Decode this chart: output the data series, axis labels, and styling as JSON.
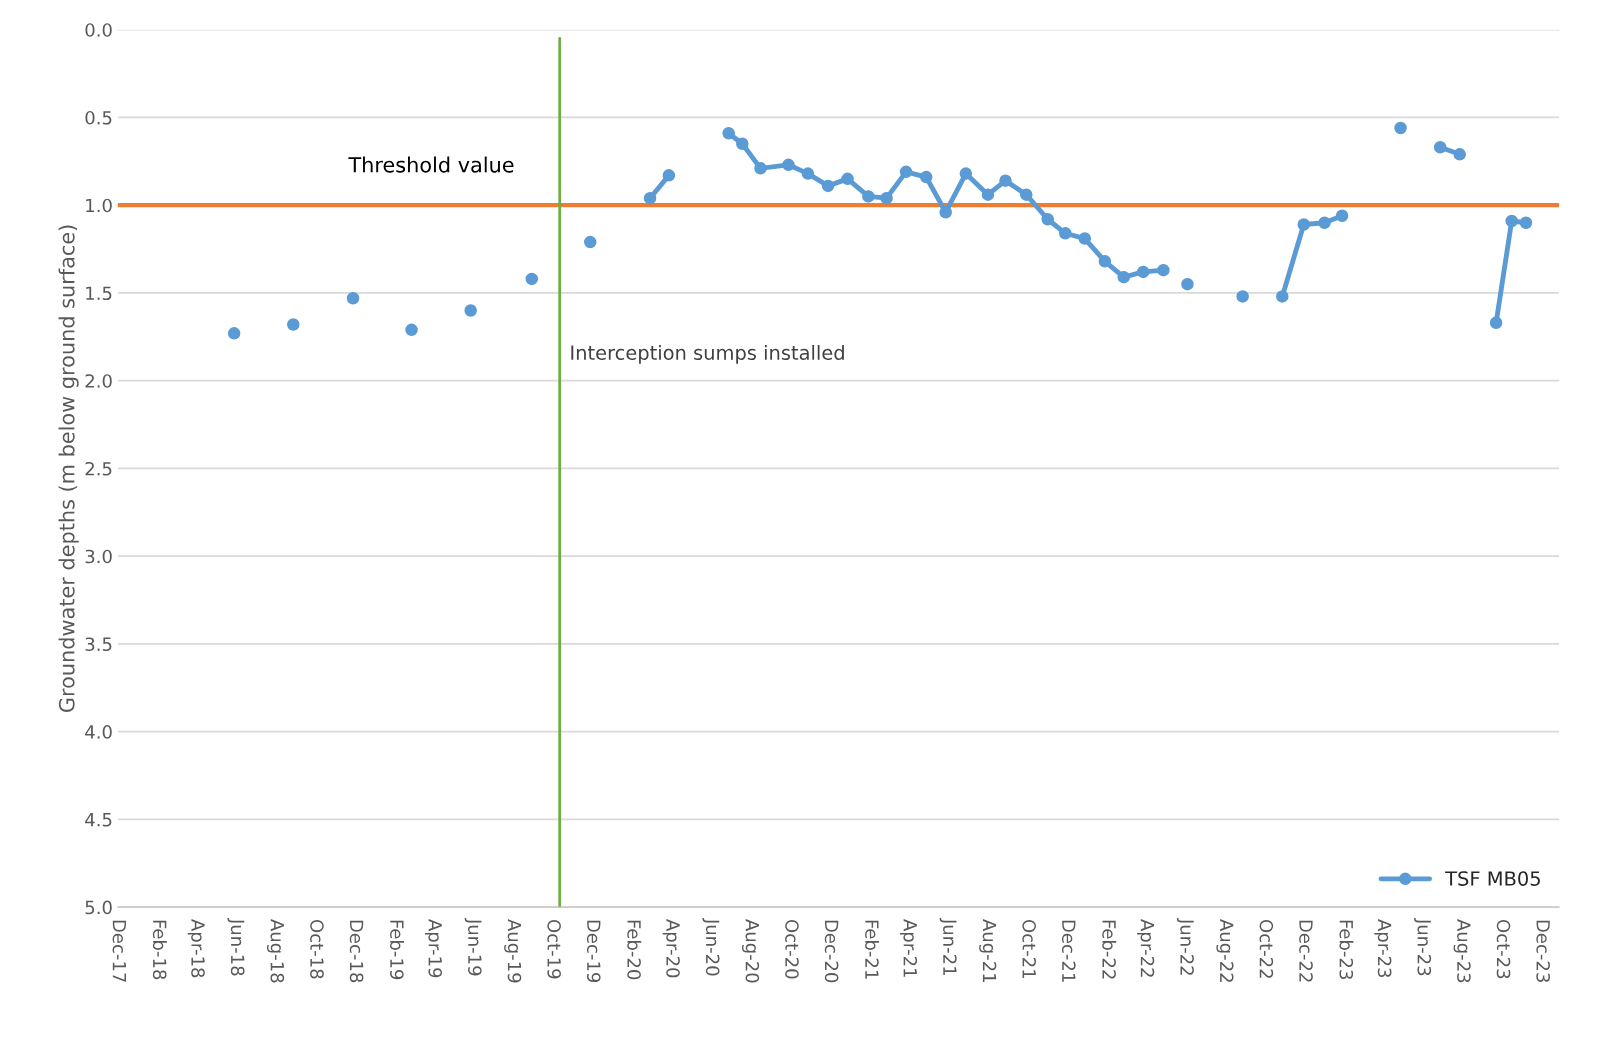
{
  "chart_data": {
    "type": "line",
    "ylabel": "Groundwater depths (m below ground surface)",
    "x": [
      "2018-05-29",
      "2018-07-15",
      "2018-08-28",
      "2018-10-15",
      "2018-11-28",
      "2019-01-15",
      "2019-02-26",
      "2019-04-15",
      "2019-05-28",
      "2019-07-15",
      "2019-08-30",
      "2019-10-15",
      "2019-11-28",
      "2020-01-15",
      "2020-02-28",
      "2020-03-28",
      "2020-05-15",
      "2020-06-28",
      "2020-07-19",
      "2020-08-16",
      "2020-09-28",
      "2020-10-28",
      "2020-11-28",
      "2020-12-28",
      "2021-01-29",
      "2021-02-26",
      "2021-03-28",
      "2021-04-28",
      "2021-05-28",
      "2021-06-28",
      "2021-08-01",
      "2021-08-28",
      "2021-09-29",
      "2021-11-01",
      "2021-11-28",
      "2021-12-28",
      "2022-01-28",
      "2022-02-26",
      "2022-03-28",
      "2022-04-28",
      "2022-05-15",
      "2022-06-04",
      "2022-07-15",
      "2022-08-28",
      "2022-09-15",
      "2022-10-28",
      "2022-11-30",
      "2023-01-01",
      "2023-01-28",
      "2023-03-15",
      "2023-04-28",
      "2023-05-15",
      "2023-06-28",
      "2023-07-28",
      "2023-08-20",
      "2023-09-22",
      "2023-10-16",
      "2023-11-07"
    ],
    "series": [
      {
        "name": "TSF MB05",
        "color": "#5b9bd5",
        "values": [
          1.73,
          null,
          1.68,
          null,
          1.53,
          null,
          1.71,
          null,
          1.6,
          null,
          1.42,
          null,
          1.21,
          null,
          0.96,
          0.83,
          null,
          0.59,
          0.65,
          0.79,
          0.77,
          0.82,
          0.89,
          0.85,
          0.95,
          0.96,
          0.81,
          0.84,
          1.04,
          0.82,
          0.94,
          0.86,
          0.94,
          1.08,
          1.16,
          1.19,
          1.32,
          1.41,
          1.38,
          1.37,
          null,
          1.45,
          null,
          1.52,
          null,
          1.52,
          1.11,
          1.1,
          1.06,
          null,
          0.56,
          null,
          0.67,
          0.71,
          null,
          1.67,
          1.09,
          1.1
        ]
      }
    ],
    "xlim": [
      "2017-12-01",
      "2023-12-28"
    ],
    "xticks": [
      {
        "value": "2017-12-01",
        "label": "Dec-17"
      },
      {
        "value": "2018-02-01",
        "label": "Feb-18"
      },
      {
        "value": "2018-04-01",
        "label": "Apr-18"
      },
      {
        "value": "2018-06-01",
        "label": "Jun-18"
      },
      {
        "value": "2018-08-01",
        "label": "Aug-18"
      },
      {
        "value": "2018-10-01",
        "label": "Oct-18"
      },
      {
        "value": "2018-12-01",
        "label": "Dec-18"
      },
      {
        "value": "2019-02-01",
        "label": "Feb-19"
      },
      {
        "value": "2019-04-01",
        "label": "Apr-19"
      },
      {
        "value": "2019-06-01",
        "label": "Jun-19"
      },
      {
        "value": "2019-08-01",
        "label": "Aug-19"
      },
      {
        "value": "2019-10-01",
        "label": "Oct-19"
      },
      {
        "value": "2019-12-01",
        "label": "Dec-19"
      },
      {
        "value": "2020-02-01",
        "label": "Feb-20"
      },
      {
        "value": "2020-04-01",
        "label": "Apr-20"
      },
      {
        "value": "2020-06-01",
        "label": "Jun-20"
      },
      {
        "value": "2020-08-01",
        "label": "Aug-20"
      },
      {
        "value": "2020-10-01",
        "label": "Oct-20"
      },
      {
        "value": "2020-12-01",
        "label": "Dec-20"
      },
      {
        "value": "2021-02-01",
        "label": "Feb-21"
      },
      {
        "value": "2021-04-01",
        "label": "Apr-21"
      },
      {
        "value": "2021-06-01",
        "label": "Jun-21"
      },
      {
        "value": "2021-08-01",
        "label": "Aug-21"
      },
      {
        "value": "2021-10-01",
        "label": "Oct-21"
      },
      {
        "value": "2021-12-01",
        "label": "Dec-21"
      },
      {
        "value": "2022-02-01",
        "label": "Feb-22"
      },
      {
        "value": "2022-04-01",
        "label": "Apr-22"
      },
      {
        "value": "2022-06-01",
        "label": "Jun-22"
      },
      {
        "value": "2022-08-01",
        "label": "Aug-22"
      },
      {
        "value": "2022-10-01",
        "label": "Oct-22"
      },
      {
        "value": "2022-12-01",
        "label": "Dec-22"
      },
      {
        "value": "2023-02-01",
        "label": "Feb-23"
      },
      {
        "value": "2023-04-01",
        "label": "Apr-23"
      },
      {
        "value": "2023-06-01",
        "label": "Jun-23"
      },
      {
        "value": "2023-08-01",
        "label": "Aug-23"
      },
      {
        "value": "2023-10-01",
        "label": "Oct-23"
      },
      {
        "value": "2023-12-01",
        "label": "Dec-23"
      }
    ],
    "ylim": [
      5.0,
      0.0
    ],
    "yticks": [
      {
        "value": 0,
        "label": "0.0"
      },
      {
        "value": 0.5,
        "label": "0.5"
      },
      {
        "value": 1,
        "label": "1.0"
      },
      {
        "value": 1.5,
        "label": "1.5"
      },
      {
        "value": 2,
        "label": "2.0"
      },
      {
        "value": 2.5,
        "label": "2.5"
      },
      {
        "value": 3,
        "label": "3.0"
      },
      {
        "value": 3.5,
        "label": "3.5"
      },
      {
        "value": 4,
        "label": "4.0"
      },
      {
        "value": 4.5,
        "label": "4.5"
      },
      {
        "value": 5,
        "label": "5.0"
      }
    ],
    "ref_lines": [
      {
        "axis": "y",
        "value": 1.0,
        "label": "Threshold value",
        "color": "#ed7d31"
      },
      {
        "axis": "x",
        "value": "2019-10-12",
        "label": "Interception sumps installed",
        "color": "#70ad47"
      }
    ],
    "grid": "y",
    "legend": "bottom right",
    "marker": "circle",
    "line_style": "solid"
  }
}
